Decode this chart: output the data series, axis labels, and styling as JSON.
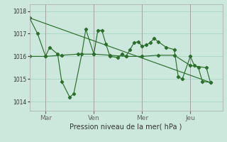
{
  "xlabel": "Pression niveau de la mer( hPa )",
  "bg_color": "#cce8dc",
  "grid_color": "#b0d8c8",
  "line_color": "#2d6e2d",
  "ylim": [
    1013.6,
    1018.3
  ],
  "yticks": [
    1014,
    1015,
    1016,
    1017,
    1018
  ],
  "xtick_labels": [
    "Mar",
    "Ven",
    "Mer",
    "Jeu"
  ],
  "xtick_positions": [
    8,
    32,
    56,
    80
  ],
  "vline_positions": [
    8,
    32,
    56,
    80
  ],
  "xlim": [
    0,
    96
  ],
  "series_volatile": [
    0,
    1017.7,
    4,
    1017.0,
    8,
    1016.0,
    10,
    1016.4,
    14,
    1016.1,
    16,
    1014.9,
    20,
    1014.2,
    22,
    1014.35,
    26,
    1016.1,
    28,
    1017.2,
    32,
    1016.1,
    34,
    1017.15,
    36,
    1017.15,
    38,
    1016.55,
    40,
    1016.0,
    44,
    1015.95,
    46,
    1016.1,
    48,
    1016.0,
    50,
    1016.3,
    52,
    1016.6,
    54,
    1016.65,
    56,
    1016.45,
    58,
    1016.5,
    60,
    1016.6,
    62,
    1016.8,
    64,
    1016.65,
    68,
    1016.4,
    72,
    1016.3,
    74,
    1015.1,
    76,
    1015.0,
    80,
    1016.0,
    82,
    1015.6,
    84,
    1015.5,
    86,
    1014.9,
    90,
    1014.85
  ],
  "series_trend": [
    0,
    1017.7,
    90,
    1014.85
  ],
  "series_flat": [
    0,
    1016.0,
    8,
    1016.0,
    16,
    1016.05,
    24,
    1016.1,
    32,
    1016.1,
    40,
    1016.05,
    48,
    1016.0,
    56,
    1016.0,
    64,
    1016.05,
    72,
    1016.05,
    80,
    1015.6,
    88,
    1015.5,
    90,
    1014.85
  ]
}
